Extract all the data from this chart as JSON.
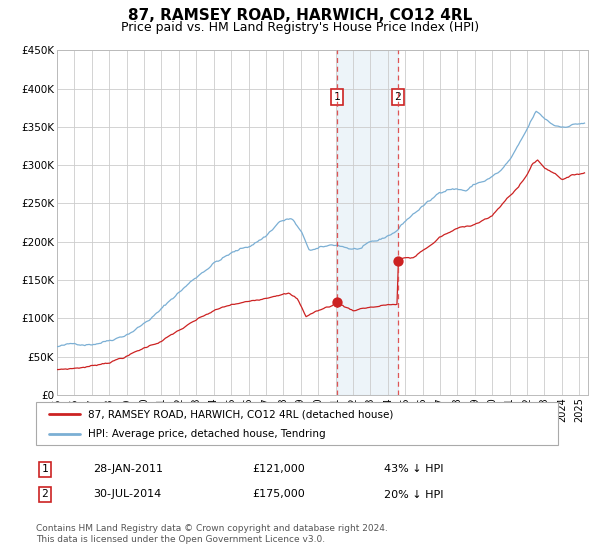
{
  "title": "87, RAMSEY ROAD, HARWICH, CO12 4RL",
  "subtitle": "Price paid vs. HM Land Registry's House Price Index (HPI)",
  "title_fontsize": 11,
  "subtitle_fontsize": 9,
  "ylim": [
    0,
    450000
  ],
  "yticks": [
    0,
    50000,
    100000,
    150000,
    200000,
    250000,
    300000,
    350000,
    400000,
    450000
  ],
  "ytick_labels": [
    "£0",
    "£50K",
    "£100K",
    "£150K",
    "£200K",
    "£250K",
    "£300K",
    "£350K",
    "£400K",
    "£450K"
  ],
  "xlim_start": 1995.0,
  "xlim_end": 2025.5,
  "hpi_color": "#7bafd4",
  "price_color": "#cc2222",
  "marker_color": "#cc2222",
  "grid_color": "#cccccc",
  "background_color": "#ffffff",
  "legend_label_price": "87, RAMSEY ROAD, HARWICH, CO12 4RL (detached house)",
  "legend_label_hpi": "HPI: Average price, detached house, Tendring",
  "event1_x": 2011.07,
  "event1_y": 121000,
  "event1_label": "1",
  "event1_date": "28-JAN-2011",
  "event1_price": "£121,000",
  "event1_pct": "43% ↓ HPI",
  "event2_x": 2014.58,
  "event2_y": 175000,
  "event2_label": "2",
  "event2_date": "30-JUL-2014",
  "event2_price": "£175,000",
  "event2_pct": "20% ↓ HPI",
  "footnote": "Contains HM Land Registry data © Crown copyright and database right 2024.\nThis data is licensed under the Open Government Licence v3.0.",
  "footnote_fontsize": 6.5
}
